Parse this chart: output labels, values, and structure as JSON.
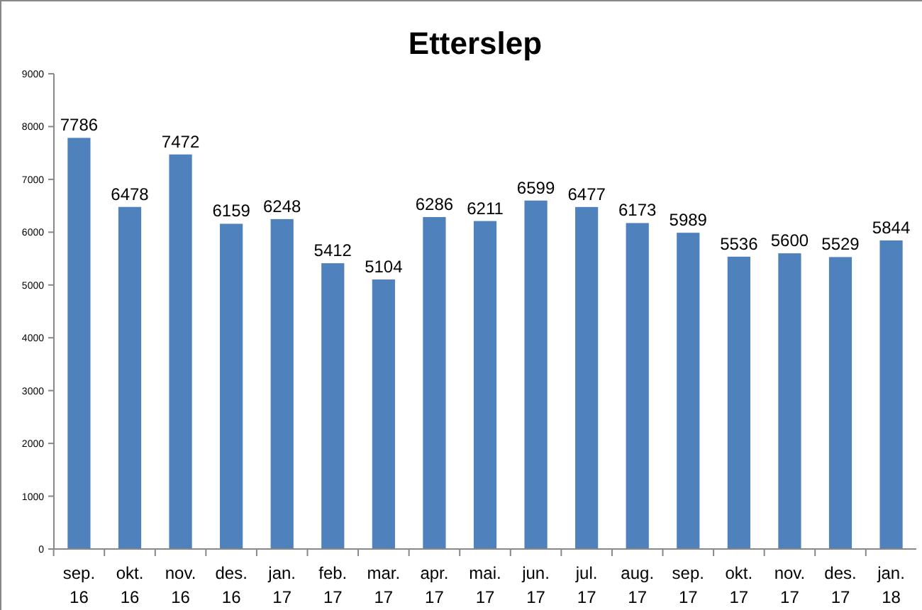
{
  "chart_data": {
    "type": "bar",
    "title": "Etterslep",
    "categories": [
      "sep. 16",
      "okt. 16",
      "nov. 16",
      "des. 16",
      "jan. 17",
      "feb. 17",
      "mar. 17",
      "apr. 17",
      "mai. 17",
      "jun. 17",
      "jul. 17",
      "aug. 17",
      "sep. 17",
      "okt. 17",
      "nov. 17",
      "des. 17",
      "jan. 18"
    ],
    "values": [
      7786,
      6478,
      7472,
      6159,
      6248,
      5412,
      5104,
      6286,
      6211,
      6599,
      6477,
      6173,
      5989,
      5536,
      5600,
      5529,
      5844
    ],
    "color": "#4f81bd",
    "ylim": [
      0,
      9000
    ],
    "yticks": [
      0,
      1000,
      2000,
      3000,
      4000,
      5000,
      6000,
      7000,
      8000,
      9000
    ],
    "grid": false,
    "data_labels": true
  }
}
